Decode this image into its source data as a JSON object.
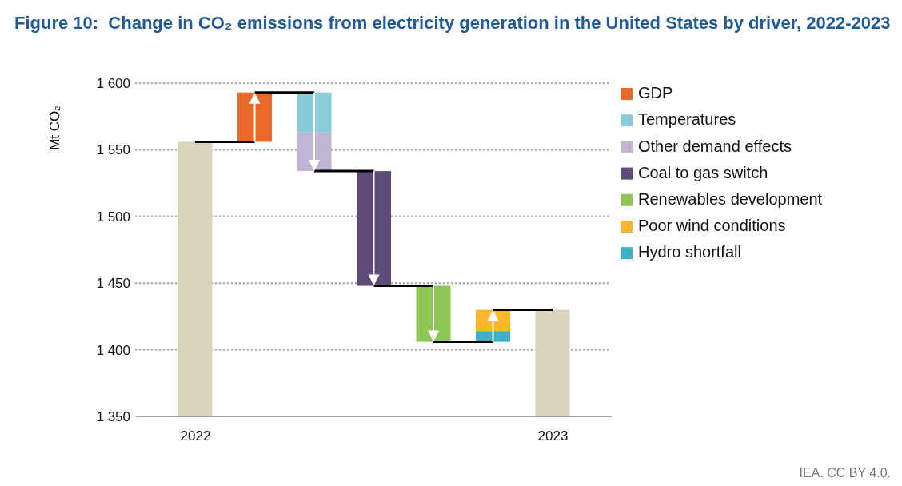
{
  "chart_data": {
    "type": "bar",
    "title": "Figure 10:  Change in CO₂ emissions from electricity generation in the United States by driver, 2022-2023",
    "ylabel": "Mt CO₂",
    "categories": [
      "2022",
      null,
      null,
      null,
      null,
      null,
      "2023"
    ],
    "series": [
      {
        "color": "#d9d4bc",
        "values": [
          1556,
          null,
          null,
          null,
          null,
          null,
          1430
        ]
      },
      {
        "name": "GDP",
        "color": "#e8692a",
        "values": [
          null,
          37,
          null,
          null,
          null,
          null,
          null
        ],
        "base": [
          null,
          1556,
          null,
          null,
          null,
          null,
          null
        ]
      },
      {
        "name": "Temperatures",
        "color": "#8accda",
        "values": [
          null,
          null,
          -30,
          null,
          null,
          null,
          null
        ],
        "base": [
          null,
          null,
          1593,
          null,
          null,
          null,
          null
        ]
      },
      {
        "name": "Other demand effects",
        "color": "#c0b6d3",
        "values": [
          null,
          null,
          -29,
          null,
          null,
          null,
          null
        ],
        "base": [
          null,
          null,
          1563,
          null,
          null,
          null,
          null
        ]
      },
      {
        "name": "Coal to gas switch",
        "color": "#5e4b7a",
        "values": [
          null,
          null,
          null,
          -86,
          null,
          null,
          null
        ],
        "base": [
          null,
          null,
          null,
          1534,
          null,
          null,
          null
        ]
      },
      {
        "name": "Renewables development",
        "color": "#8fc756",
        "values": [
          null,
          null,
          null,
          null,
          -42,
          null,
          null
        ],
        "base": [
          null,
          null,
          null,
          null,
          1448,
          null,
          null
        ]
      },
      {
        "name": "Poor wind conditions",
        "color": "#fbb62a",
        "values": [
          null,
          null,
          null,
          null,
          null,
          16,
          null
        ],
        "base": [
          null,
          null,
          null,
          null,
          null,
          1414,
          null
        ]
      },
      {
        "name": "Hydro shortfall",
        "color": "#3fb0c5",
        "values": [
          null,
          null,
          null,
          null,
          null,
          8,
          null
        ],
        "base": [
          null,
          null,
          null,
          null,
          null,
          1406,
          null
        ]
      }
    ],
    "ylim": [
      1350,
      1600
    ],
    "yticks": [
      {
        "value": 1350,
        "label": "1 350"
      },
      {
        "value": 1400,
        "label": "1 400"
      },
      {
        "value": 1450,
        "label": "1 450"
      },
      {
        "value": 1500,
        "label": "1 500"
      },
      {
        "value": 1550,
        "label": "1 550"
      },
      {
        "value": 1600,
        "label": "1 600"
      }
    ],
    "grid": "y",
    "legend": "right",
    "annotations": [
      "IEA. CC BY 4.0."
    ]
  }
}
